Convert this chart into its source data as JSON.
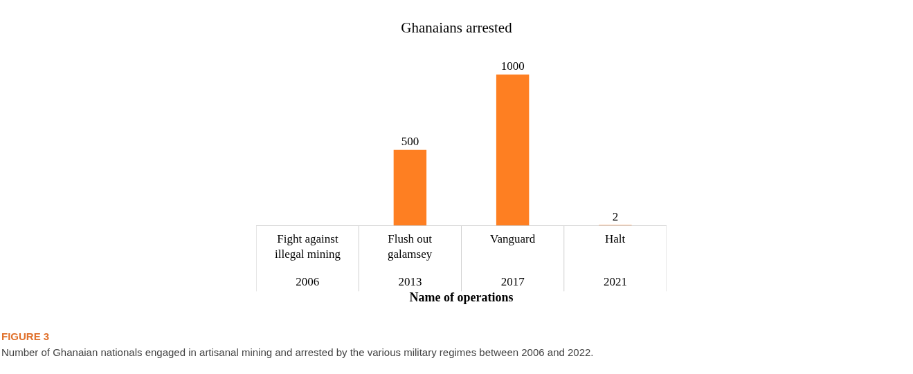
{
  "chart_data": {
    "type": "bar",
    "title": "Ghanaians arrested",
    "xlabel": "Name of operations",
    "categories": [
      "2006",
      "2013",
      "2017",
      "2021"
    ],
    "values": [
      null,
      500,
      1000,
      2
    ],
    "value_labels": [
      null,
      "500",
      "1000",
      "2"
    ],
    "color": "#fe7f22",
    "grid": false,
    "annotations": [
      "Fight against\nillegal mining",
      "Flush out\ngalamsey",
      "Vanguard",
      "Halt",
      "FIGURE 3",
      "Number of Ghanaian nationals engaged in artisanal mining and arrested by the various military regimes between 2006 and 2022."
    ]
  }
}
